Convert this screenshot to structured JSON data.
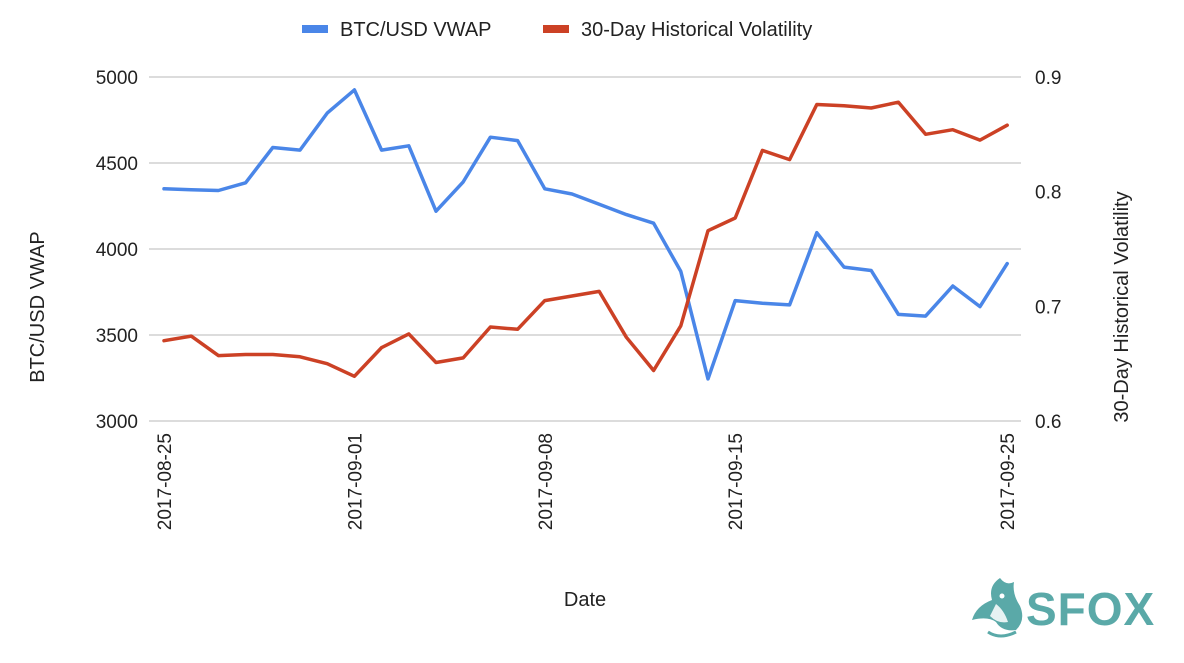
{
  "chart_data": {
    "type": "line",
    "xlabel": "Date",
    "x_ticks": [
      "2017-08-25",
      "2017-09-01",
      "2017-09-08",
      "2017-09-15",
      "2017-09-25"
    ],
    "x": [
      "2017-08-25",
      "2017-08-26",
      "2017-08-27",
      "2017-08-28",
      "2017-08-29",
      "2017-08-30",
      "2017-08-31",
      "2017-09-01",
      "2017-09-02",
      "2017-09-03",
      "2017-09-04",
      "2017-09-05",
      "2017-09-06",
      "2017-09-07",
      "2017-09-08",
      "2017-09-09",
      "2017-09-10",
      "2017-09-11",
      "2017-09-12",
      "2017-09-13",
      "2017-09-14",
      "2017-09-15",
      "2017-09-16",
      "2017-09-17",
      "2017-09-18",
      "2017-09-19",
      "2017-09-20",
      "2017-09-21",
      "2017-09-22",
      "2017-09-23",
      "2017-09-24",
      "2017-09-25"
    ],
    "left_axis": {
      "label": "BTC/USD VWAP",
      "ylim": [
        3000,
        5000
      ],
      "ticks": [
        "3000",
        "3500",
        "4000",
        "4500",
        "5000"
      ]
    },
    "right_axis": {
      "label": "30-Day Historical Volatility",
      "ylim": [
        0.6,
        0.9
      ],
      "ticks": [
        "0.6",
        "0.7",
        "0.8",
        "0.9"
      ]
    },
    "grid": true,
    "legend_position": "top",
    "series": [
      {
        "name": "BTC/USD VWAP",
        "axis": "left",
        "color": "#4a86e8",
        "values": [
          4350,
          4345,
          4340,
          4385,
          4590,
          4575,
          4790,
          4925,
          4575,
          4600,
          4220,
          4390,
          4650,
          4630,
          4350,
          4320,
          4260,
          4200,
          4150,
          3870,
          3245,
          3700,
          3685,
          3675,
          4095,
          3895,
          3875,
          3620,
          3610,
          3785,
          3665,
          3915
        ]
      },
      {
        "name": "30-Day Historical Volatility",
        "axis": "right",
        "color": "#cc4125",
        "values": [
          0.67,
          0.674,
          0.657,
          0.658,
          0.658,
          0.656,
          0.65,
          0.639,
          0.664,
          0.676,
          0.651,
          0.655,
          0.682,
          0.68,
          0.705,
          0.709,
          0.713,
          0.673,
          0.644,
          0.683,
          0.766,
          0.777,
          0.836,
          0.828,
          0.876,
          0.875,
          0.873,
          0.878,
          0.85,
          0.854,
          0.845,
          0.858
        ]
      }
    ]
  },
  "logo": {
    "text": "SFOX",
    "icon": "fox-icon",
    "color": "#5aa9a8"
  }
}
